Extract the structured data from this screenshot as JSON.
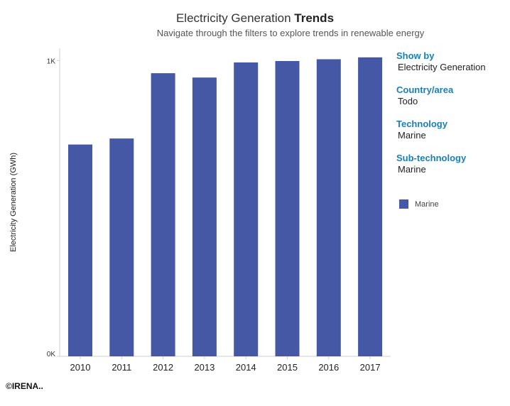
{
  "header": {
    "title_regular": "Electricity Generation",
    "title_bold": "Trends",
    "subtitle": "Navigate through the filters to explore trends in renewable energy"
  },
  "filters": [
    {
      "label": "Show by",
      "value": "Electricity Generation"
    },
    {
      "label": "Country/area",
      "value": "Todo"
    },
    {
      "label": "Technology",
      "value": "Marine"
    },
    {
      "label": "Sub-technology",
      "value": "Marine"
    }
  ],
  "footer": {
    "copyright": "©IRENA.."
  },
  "colors": {
    "bar": "#4558a6",
    "filter_label": "#1a7fb5",
    "axis": "#cfcfcf"
  },
  "chart_data": {
    "type": "bar",
    "scale": "log",
    "categories": [
      "2010",
      "2011",
      "2012",
      "2013",
      "2014",
      "2015",
      "2016",
      "2017"
    ],
    "series": [
      {
        "name": "Marine",
        "values": [
          520,
          545,
          906,
          876,
          985,
          996,
          1010,
          1025
        ]
      }
    ],
    "ylabel": "Electricity Generation (GWh)",
    "y_ticks": [
      {
        "value": 1000,
        "label": "1K"
      },
      {
        "value": 100,
        "label": "0K"
      }
    ],
    "ylim": [
      100,
      1100
    ],
    "grid": false,
    "legend_position": "right"
  }
}
